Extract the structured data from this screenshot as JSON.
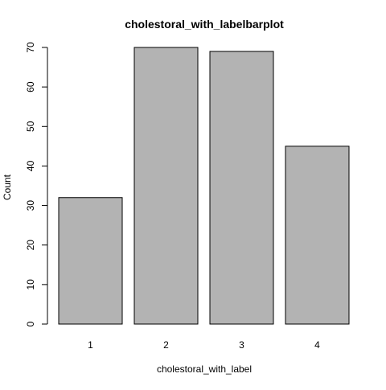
{
  "chart_data": {
    "type": "bar",
    "title": "cholestoral_with_labelbarplot",
    "xlabel": "cholestoral_with_label",
    "ylabel": "Count",
    "categories": [
      "1",
      "2",
      "3",
      "4"
    ],
    "values": [
      32,
      70,
      69,
      45
    ],
    "ylim": [
      0,
      70
    ],
    "yticks": [
      0,
      10,
      20,
      30,
      40,
      50,
      60,
      70
    ],
    "bar_color": "#b3b3b3",
    "grid": false,
    "legend": "none"
  }
}
